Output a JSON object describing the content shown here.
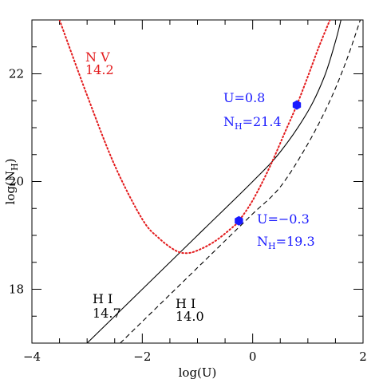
{
  "chart_data": {
    "type": "line",
    "xlabel": "log(U)",
    "ylabel": "log(N_H)",
    "xlim": [
      -4,
      2
    ],
    "ylim": [
      17,
      23
    ],
    "xticks": [
      -4,
      -2,
      0,
      2
    ],
    "yticks": [
      18,
      20,
      22
    ],
    "xtick_labels": [
      "−4",
      "−2",
      "0",
      "2"
    ],
    "ytick_labels": [
      "18",
      "20",
      "22"
    ],
    "grid": false,
    "colors": {
      "axes": "#000000",
      "nv": "#e31a1c",
      "points": "#1a1aff"
    },
    "series": [
      {
        "name": "H I 14.7",
        "style": "solid",
        "color": "#000000",
        "x": [
          -3.0,
          -2.0,
          -1.0,
          0.0,
          0.5,
          1.0,
          1.3,
          1.5,
          1.6
        ],
        "y": [
          17.0,
          18.0,
          19.0,
          20.0,
          20.55,
          21.3,
          21.95,
          22.6,
          23.0
        ]
      },
      {
        "name": "H I 14.0",
        "style": "dashed",
        "color": "#000000",
        "x": [
          -2.4,
          -1.5,
          -0.5,
          0.0,
          0.5,
          1.0,
          1.4,
          1.7,
          1.95
        ],
        "y": [
          17.0,
          17.9,
          18.9,
          19.4,
          19.9,
          20.7,
          21.5,
          22.25,
          23.0
        ]
      },
      {
        "name": "N V 14.2",
        "style": "dotted",
        "color": "#e31a1c",
        "x": [
          -3.5,
          -3.0,
          -2.5,
          -2.0,
          -1.7,
          -1.4,
          -1.2,
          -1.0,
          -0.7,
          -0.4,
          -0.25,
          0.0,
          0.3,
          0.6,
          0.8,
          1.0,
          1.2,
          1.4
        ],
        "y": [
          23.0,
          21.6,
          20.3,
          19.3,
          18.95,
          18.72,
          18.67,
          18.72,
          18.88,
          19.12,
          19.27,
          19.65,
          20.25,
          20.95,
          21.42,
          21.95,
          22.5,
          23.0
        ]
      }
    ],
    "points": [
      {
        "x": 0.8,
        "y": 21.42,
        "label": "U=0.8",
        "label2": "N",
        "label2_sub": "H",
        "label2_val": "=21.4"
      },
      {
        "x": -0.25,
        "y": 19.27,
        "label": "U=−0.3",
        "label2": "N",
        "label2_sub": "H",
        "label2_val": "=19.3"
      }
    ],
    "annotations": [
      {
        "line1": "N  V",
        "line2": "14.2",
        "color": "#e31a1c"
      },
      {
        "line1": "H  I",
        "line2": "14.7",
        "color": "#000000"
      },
      {
        "line1": "H  I",
        "line2": "14.0",
        "color": "#000000"
      }
    ]
  }
}
